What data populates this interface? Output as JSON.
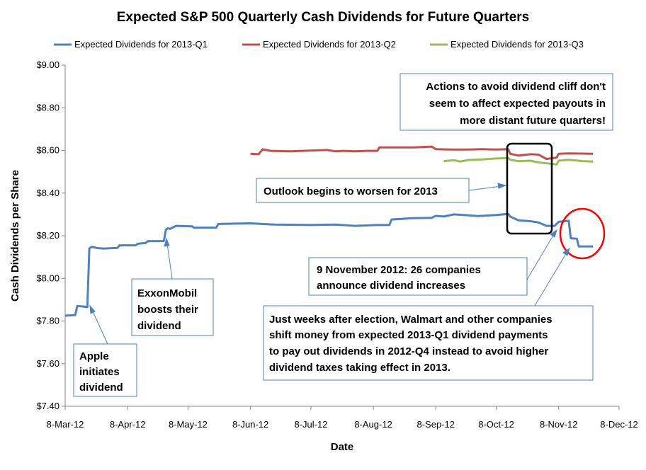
{
  "chart_data": {
    "type": "line",
    "title": "Expected S&P 500 Quarterly Cash Dividends for Future Quarters",
    "xlabel": "Date",
    "ylabel": "Cash Dividends per Share",
    "ylim": [
      7.4,
      9.0
    ],
    "yticks": [
      7.4,
      7.6,
      7.8,
      8.0,
      8.2,
      8.4,
      8.6,
      8.8,
      9.0
    ],
    "ytick_labels": [
      "$7.40",
      "$7.60",
      "$7.80",
      "$8.00",
      "$8.20",
      "$8.40",
      "$8.60",
      "$8.80",
      "$9.00"
    ],
    "xlim": [
      "2012-03-08",
      "2012-12-08"
    ],
    "xticks": [
      "2012-03-08",
      "2012-04-08",
      "2012-05-08",
      "2012-06-08",
      "2012-07-08",
      "2012-08-08",
      "2012-09-08",
      "2012-10-08",
      "2012-11-08",
      "2012-12-08"
    ],
    "xtick_labels": [
      "8-Mar-12",
      "8-Apr-12",
      "8-May-12",
      "8-Jun-12",
      "8-Jul-12",
      "8-Aug-12",
      "8-Sep-12",
      "8-Oct-12",
      "8-Nov-12",
      "8-Dec-12"
    ],
    "grid": false,
    "legend_position": "top",
    "series": [
      {
        "name": "Expected Dividends for 2013-Q1",
        "color": "#4f81bd",
        "points": [
          [
            "2012-03-08",
            7.825
          ],
          [
            "2012-03-13",
            7.828
          ],
          [
            "2012-03-14",
            7.87
          ],
          [
            "2012-03-17",
            7.868
          ],
          [
            "2012-03-19",
            7.865
          ],
          [
            "2012-03-20",
            8.14
          ],
          [
            "2012-03-21",
            8.148
          ],
          [
            "2012-03-24",
            8.142
          ],
          [
            "2012-03-27",
            8.14
          ],
          [
            "2012-04-01",
            8.142
          ],
          [
            "2012-04-03",
            8.143
          ],
          [
            "2012-04-04",
            8.155
          ],
          [
            "2012-04-12",
            8.155
          ],
          [
            "2012-04-13",
            8.162
          ],
          [
            "2012-04-17",
            8.166
          ],
          [
            "2012-04-18",
            8.174
          ],
          [
            "2012-04-26",
            8.175
          ],
          [
            "2012-04-27",
            8.228
          ],
          [
            "2012-04-28",
            8.235
          ],
          [
            "2012-04-29",
            8.232
          ],
          [
            "2012-05-02",
            8.246
          ],
          [
            "2012-05-10",
            8.244
          ],
          [
            "2012-05-11",
            8.238
          ],
          [
            "2012-05-22",
            8.238
          ],
          [
            "2012-05-23",
            8.255
          ],
          [
            "2012-06-08",
            8.258
          ],
          [
            "2012-06-20",
            8.252
          ],
          [
            "2012-07-08",
            8.25
          ],
          [
            "2012-07-20",
            8.252
          ],
          [
            "2012-07-30",
            8.246
          ],
          [
            "2012-08-10",
            8.25
          ],
          [
            "2012-08-16",
            8.25
          ],
          [
            "2012-08-17",
            8.276
          ],
          [
            "2012-08-22",
            8.279
          ],
          [
            "2012-08-27",
            8.282
          ],
          [
            "2012-09-06",
            8.284
          ],
          [
            "2012-09-08",
            8.293
          ],
          [
            "2012-09-12",
            8.29
          ],
          [
            "2012-09-17",
            8.3
          ],
          [
            "2012-09-24",
            8.296
          ],
          [
            "2012-09-29",
            8.292
          ],
          [
            "2012-10-08",
            8.297
          ],
          [
            "2012-10-14",
            8.302
          ],
          [
            "2012-10-15",
            8.29
          ],
          [
            "2012-10-19",
            8.272
          ],
          [
            "2012-10-25",
            8.268
          ],
          [
            "2012-10-29",
            8.262
          ],
          [
            "2012-11-02",
            8.246
          ],
          [
            "2012-11-06",
            8.246
          ],
          [
            "2012-11-08",
            8.265
          ],
          [
            "2012-11-13",
            8.27
          ],
          [
            "2012-11-14",
            8.188
          ],
          [
            "2012-11-17",
            8.186
          ],
          [
            "2012-11-18",
            8.15
          ],
          [
            "2012-11-25",
            8.15
          ]
        ]
      },
      {
        "name": "Expected Dividends for 2013-Q2",
        "color": "#c0504d",
        "points": [
          [
            "2012-06-08",
            8.584
          ],
          [
            "2012-06-12",
            8.582
          ],
          [
            "2012-06-14",
            8.605
          ],
          [
            "2012-06-18",
            8.598
          ],
          [
            "2012-06-22",
            8.597
          ],
          [
            "2012-06-28",
            8.596
          ],
          [
            "2012-07-04",
            8.598
          ],
          [
            "2012-07-10",
            8.6
          ],
          [
            "2012-07-16",
            8.602
          ],
          [
            "2012-07-20",
            8.596
          ],
          [
            "2012-07-24",
            8.598
          ],
          [
            "2012-07-30",
            8.596
          ],
          [
            "2012-08-05",
            8.598
          ],
          [
            "2012-08-10",
            8.598
          ],
          [
            "2012-08-11",
            8.614
          ],
          [
            "2012-08-20",
            8.614
          ],
          [
            "2012-08-28",
            8.614
          ],
          [
            "2012-09-06",
            8.618
          ],
          [
            "2012-09-08",
            8.606
          ],
          [
            "2012-09-16",
            8.604
          ],
          [
            "2012-09-24",
            8.604
          ],
          [
            "2012-10-01",
            8.606
          ],
          [
            "2012-10-08",
            8.604
          ],
          [
            "2012-10-14",
            8.606
          ],
          [
            "2012-10-15",
            8.584
          ],
          [
            "2012-10-19",
            8.576
          ],
          [
            "2012-10-25",
            8.582
          ],
          [
            "2012-10-29",
            8.58
          ],
          [
            "2012-11-02",
            8.56
          ],
          [
            "2012-11-07",
            8.566
          ],
          [
            "2012-11-08",
            8.584
          ],
          [
            "2012-11-13",
            8.586
          ],
          [
            "2012-11-20",
            8.585
          ],
          [
            "2012-11-25",
            8.584
          ]
        ]
      },
      {
        "name": "Expected Dividends for 2013-Q3",
        "color": "#9bbb59",
        "points": [
          [
            "2012-09-12",
            8.55
          ],
          [
            "2012-09-17",
            8.554
          ],
          [
            "2012-09-20",
            8.548
          ],
          [
            "2012-09-24",
            8.555
          ],
          [
            "2012-10-01",
            8.558
          ],
          [
            "2012-10-08",
            8.562
          ],
          [
            "2012-10-14",
            8.564
          ],
          [
            "2012-10-15",
            8.556
          ],
          [
            "2012-10-19",
            8.55
          ],
          [
            "2012-10-25",
            8.552
          ],
          [
            "2012-10-29",
            8.544
          ],
          [
            "2012-11-02",
            8.54
          ],
          [
            "2012-11-07",
            8.534
          ],
          [
            "2012-11-08",
            8.552
          ],
          [
            "2012-11-13",
            8.556
          ],
          [
            "2012-11-20",
            8.55
          ],
          [
            "2012-11-25",
            8.548
          ]
        ]
      }
    ],
    "annotations": {
      "apple": [
        "Apple",
        "initiates",
        "dividend"
      ],
      "exxon": [
        "ExxonMobil",
        "boosts their",
        "dividend"
      ],
      "outlook": [
        "Outlook begins to worsen for 2013"
      ],
      "cliff": [
        "Actions to avoid dividend cliff don't",
        "seem to affect expected payouts in",
        "more distant future quarters!"
      ],
      "nov9": [
        "9 November 2012: 26 companies",
        "announce dividend increases"
      ],
      "walmart": [
        "Just weeks after election, Walmart and other companies",
        "shift money from expected 2013-Q1 dividend payments",
        "to pay out dividends in 2012-Q4 instead to avoid higher",
        "dividend taxes taking effect in 2013."
      ]
    }
  }
}
